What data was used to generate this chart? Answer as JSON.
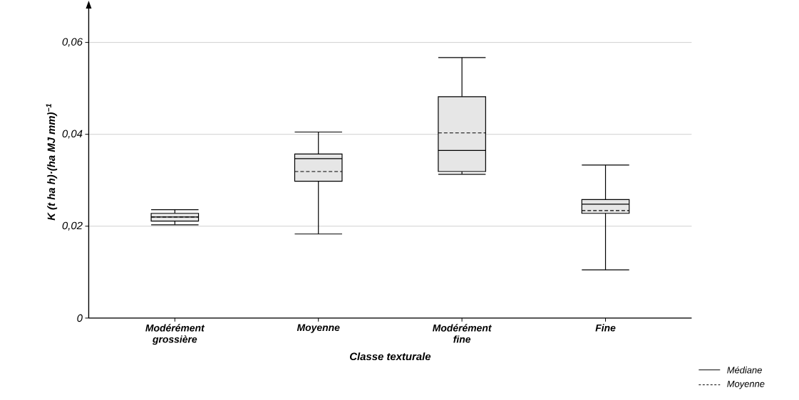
{
  "chart_data": {
    "type": "box",
    "ylabel": "K (t ha h)·(ha MJ mm)$^{−1}$",
    "xlabel": "Classe texturale",
    "categories": [
      "Modérément grossière",
      "Moyenne",
      "Modérément fine",
      "Fine"
    ],
    "series": [
      {
        "color": "#e6e6e6",
        "boxes": [
          {
            "low": 0.0203,
            "q1": 0.0211,
            "median": 0.022,
            "q3": 0.0228,
            "high": 0.0236,
            "mean": 0.022
          },
          {
            "low": 0.0183,
            "q1": 0.0298,
            "median": 0.0347,
            "q3": 0.0357,
            "high": 0.0405,
            "mean": 0.0319
          },
          {
            "low": 0.0313,
            "q1": 0.0319,
            "median": 0.0365,
            "q3": 0.0482,
            "high": 0.0567,
            "mean": 0.0403
          },
          {
            "low": 0.0105,
            "q1": 0.0228,
            "median": 0.0248,
            "q3": 0.0258,
            "high": 0.0333,
            "mean": 0.0234
          }
        ]
      }
    ],
    "ylim": [
      0,
      0.068
    ],
    "yticks": [
      0,
      {
        "value": 0.02,
        "label": "0,02"
      },
      {
        "value": 0.04,
        "label": "0,04"
      },
      {
        "value": 0.06,
        "label": "0,06"
      }
    ],
    "grid": "y",
    "annotations": [
      "Médiane",
      "Moyenne"
    ]
  }
}
